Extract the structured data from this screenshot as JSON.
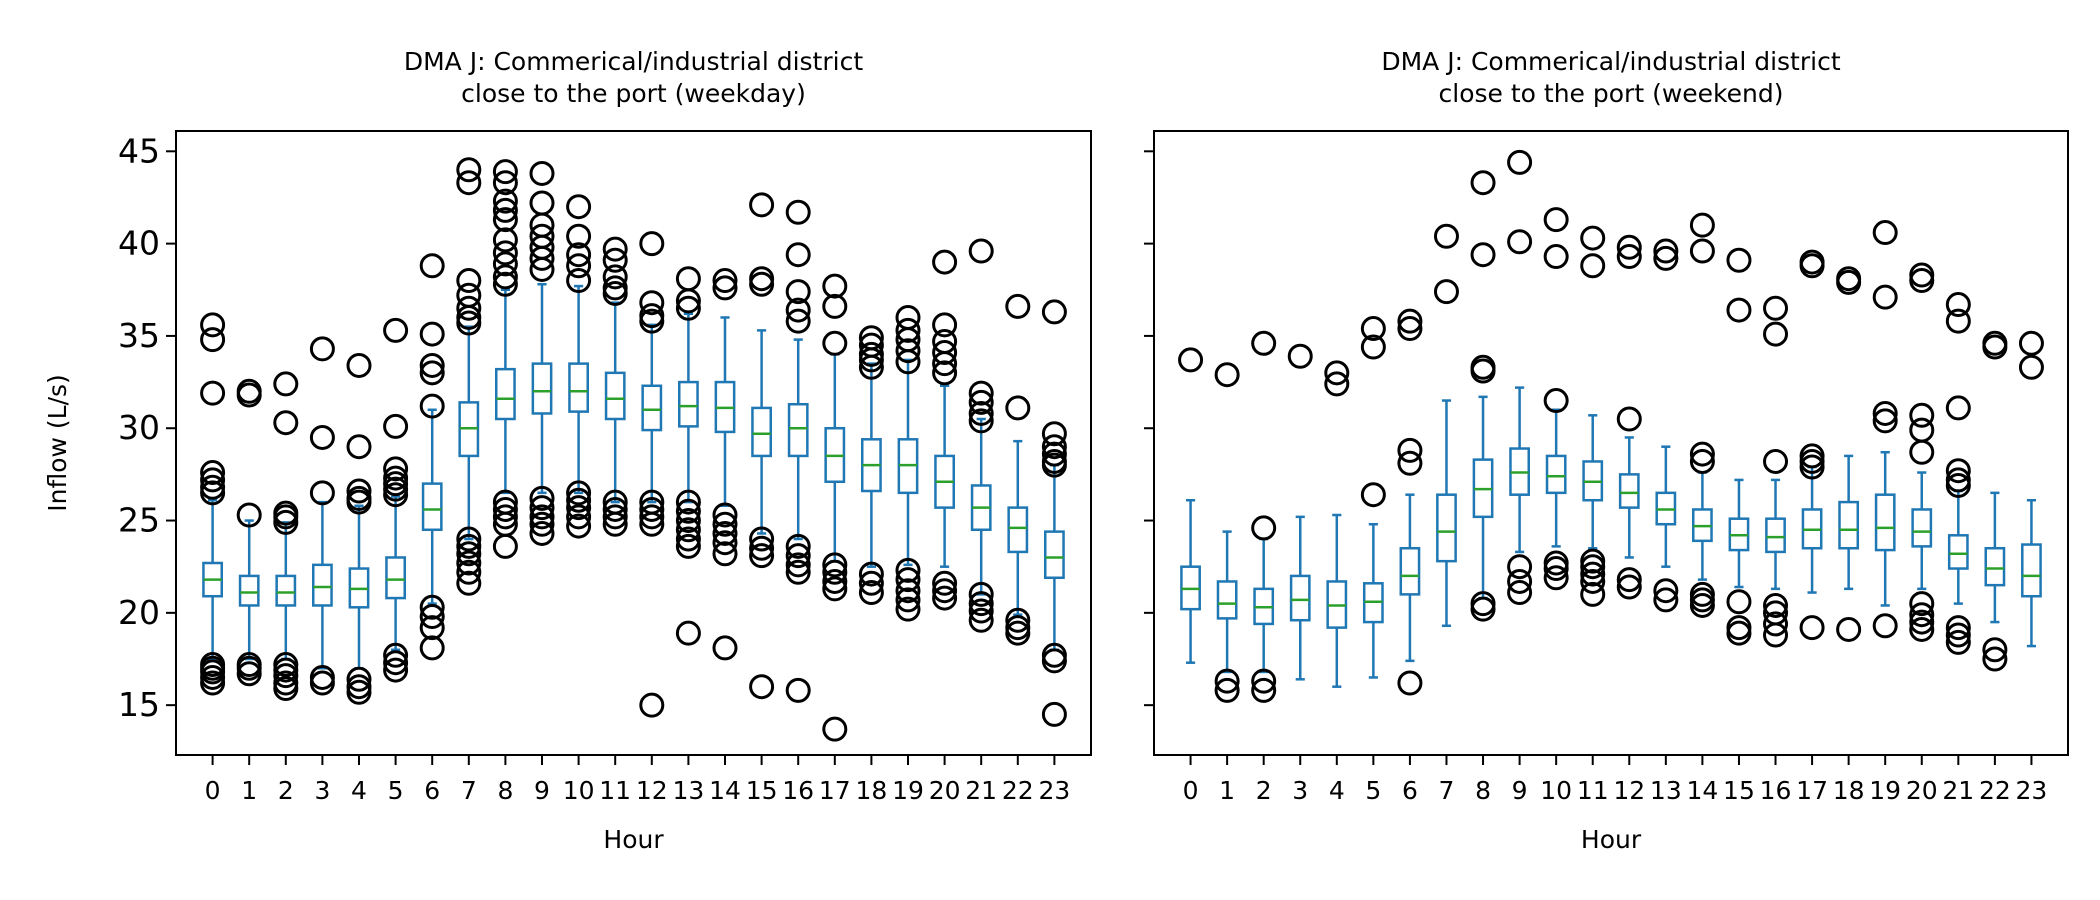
{
  "chart_data": [
    {
      "type": "box",
      "title": "DMA J: Commerical/industrial district\nclose to the port (weekday)",
      "xlabel": "Hour",
      "ylabel": "Inflow (L/s)",
      "ylim": [
        12.3,
        46.1
      ],
      "yticks": [
        15,
        20,
        25,
        30,
        35,
        40,
        45
      ],
      "categories": [
        "0",
        "1",
        "2",
        "3",
        "4",
        "5",
        "6",
        "7",
        "8",
        "9",
        "10",
        "11",
        "12",
        "13",
        "14",
        "15",
        "16",
        "17",
        "18",
        "19",
        "20",
        "21",
        "22",
        "23"
      ],
      "grid": false,
      "colors": {
        "box": "#1f77b4",
        "median": "#2ca02c",
        "flier": "#000000"
      },
      "boxes": [
        {
          "whislo": 17.5,
          "q1": 20.9,
          "med": 21.8,
          "q3": 22.7,
          "whishi": 26.1,
          "fliers": [
            35.6,
            34.8,
            31.9,
            27.6,
            27.2,
            26.8,
            26.5,
            17.2,
            17.0,
            16.8,
            16.5,
            16.2
          ]
        },
        {
          "whislo": 17.5,
          "q1": 20.4,
          "med": 21.1,
          "q3": 22.0,
          "whishi": 25.0,
          "fliers": [
            32.0,
            31.8,
            25.3,
            17.2,
            17.0,
            16.7
          ]
        },
        {
          "whislo": 17.5,
          "q1": 20.4,
          "med": 21.1,
          "q3": 22.0,
          "whishi": 24.9,
          "fliers": [
            32.4,
            30.3,
            25.4,
            25.2,
            24.9,
            17.2,
            16.9,
            16.6,
            16.2,
            15.9
          ]
        },
        {
          "whislo": 17.0,
          "q1": 20.4,
          "med": 21.4,
          "q3": 22.6,
          "whishi": 26.0,
          "fliers": [
            34.3,
            29.5,
            26.5,
            16.5,
            16.2
          ]
        },
        {
          "whislo": 17.0,
          "q1": 20.3,
          "med": 21.3,
          "q3": 22.4,
          "whishi": 25.8,
          "fliers": [
            33.4,
            29.0,
            26.6,
            26.2,
            26.0,
            16.4,
            16.0,
            15.7
          ]
        },
        {
          "whislo": 18.0,
          "q1": 20.8,
          "med": 21.8,
          "q3": 23.0,
          "whishi": 26.3,
          "fliers": [
            35.3,
            30.1,
            27.8,
            27.3,
            27.0,
            26.7,
            26.4,
            17.7,
            17.3,
            16.9
          ]
        },
        {
          "whislo": 20.5,
          "q1": 24.5,
          "med": 25.6,
          "q3": 27.0,
          "whishi": 31.0,
          "fliers": [
            38.8,
            35.1,
            33.4,
            33.0,
            31.2,
            20.3,
            19.8,
            19.2,
            18.1
          ]
        },
        {
          "whislo": 24.0,
          "q1": 28.5,
          "med": 30.0,
          "q3": 31.4,
          "whishi": 35.5,
          "fliers": [
            44.0,
            43.3,
            38.0,
            37.2,
            36.5,
            36.0,
            35.7,
            24.0,
            23.6,
            23.2,
            22.7,
            22.2,
            21.6
          ]
        },
        {
          "whislo": 26.5,
          "q1": 30.5,
          "med": 31.6,
          "q3": 33.2,
          "whishi": 37.5,
          "fliers": [
            43.9,
            43.3,
            42.3,
            41.8,
            41.3,
            40.2,
            39.5,
            38.9,
            38.2,
            37.8,
            26.0,
            25.6,
            25.2,
            24.8,
            23.6
          ]
        },
        {
          "whislo": 26.5,
          "q1": 30.8,
          "med": 32.0,
          "q3": 33.5,
          "whishi": 37.8,
          "fliers": [
            43.8,
            42.2,
            41.0,
            40.4,
            39.8,
            39.2,
            38.6,
            26.2,
            25.7,
            25.2,
            24.8,
            24.3
          ]
        },
        {
          "whislo": 26.5,
          "q1": 30.9,
          "med": 32.0,
          "q3": 33.5,
          "whishi": 37.7,
          "fliers": [
            42.0,
            40.4,
            39.4,
            38.8,
            38.0,
            26.5,
            26.1,
            25.7,
            25.2,
            24.7
          ]
        },
        {
          "whislo": 26.0,
          "q1": 30.5,
          "med": 31.6,
          "q3": 33.0,
          "whishi": 36.8,
          "fliers": [
            39.7,
            39.1,
            38.2,
            37.6,
            37.3,
            26.0,
            25.6,
            25.2,
            24.8
          ]
        },
        {
          "whislo": 26.0,
          "q1": 29.9,
          "med": 31.0,
          "q3": 32.3,
          "whishi": 35.6,
          "fliers": [
            40.0,
            36.8,
            36.1,
            35.8,
            26.0,
            25.6,
            25.2,
            24.8,
            15.0
          ]
        },
        {
          "whislo": 26.0,
          "q1": 30.1,
          "med": 31.2,
          "q3": 32.5,
          "whishi": 36.2,
          "fliers": [
            38.1,
            36.9,
            36.5,
            26.0,
            25.5,
            25.0,
            24.5,
            24.0,
            23.6,
            18.9
          ]
        },
        {
          "whislo": 25.8,
          "q1": 29.8,
          "med": 31.1,
          "q3": 32.5,
          "whishi": 36.0,
          "fliers": [
            38.0,
            37.6,
            25.3,
            24.8,
            24.3,
            23.8,
            23.2,
            18.1
          ]
        },
        {
          "whislo": 24.3,
          "q1": 28.5,
          "med": 29.7,
          "q3": 31.1,
          "whishi": 35.3,
          "fliers": [
            42.1,
            38.1,
            37.8,
            24.0,
            23.5,
            23.1,
            16.0
          ]
        },
        {
          "whislo": 24.0,
          "q1": 28.5,
          "med": 30.0,
          "q3": 31.3,
          "whishi": 34.8,
          "fliers": [
            41.7,
            39.4,
            37.4,
            36.4,
            35.8,
            23.6,
            23.1,
            22.6,
            22.2,
            15.8
          ]
        },
        {
          "whislo": 22.8,
          "q1": 27.1,
          "med": 28.5,
          "q3": 30.0,
          "whishi": 34.0,
          "fliers": [
            37.7,
            36.6,
            34.6,
            22.6,
            22.2,
            21.7,
            21.3,
            13.7
          ]
        },
        {
          "whislo": 22.5,
          "q1": 26.6,
          "med": 28.0,
          "q3": 29.4,
          "whishi": 33.5,
          "fliers": [
            34.9,
            34.5,
            34.0,
            33.7,
            33.3,
            22.1,
            21.6,
            21.1
          ]
        },
        {
          "whislo": 22.6,
          "q1": 26.5,
          "med": 28.0,
          "q3": 29.4,
          "whishi": 33.7,
          "fliers": [
            36.0,
            35.3,
            34.8,
            34.2,
            33.6,
            22.3,
            21.8,
            21.2,
            20.7,
            20.2
          ]
        },
        {
          "whislo": 22.5,
          "q1": 25.7,
          "med": 27.1,
          "q3": 28.5,
          "whishi": 32.3,
          "fliers": [
            39.0,
            35.6,
            34.7,
            34.1,
            33.5,
            33.0,
            21.6,
            21.2,
            20.8
          ]
        },
        {
          "whislo": 21.0,
          "q1": 24.5,
          "med": 25.7,
          "q3": 26.9,
          "whishi": 30.5,
          "fliers": [
            39.6,
            31.9,
            31.4,
            30.8,
            30.4,
            21.0,
            20.5,
            20.1,
            19.6
          ]
        },
        {
          "whislo": 19.9,
          "q1": 23.3,
          "med": 24.6,
          "q3": 25.7,
          "whishi": 29.3,
          "fliers": [
            36.6,
            31.1,
            19.6,
            19.2,
            18.9
          ]
        },
        {
          "whislo": 18.0,
          "q1": 21.9,
          "med": 23.0,
          "q3": 24.4,
          "whishi": 28.0,
          "fliers": [
            36.3,
            29.7,
            29.0,
            28.6,
            28.2,
            28.0,
            17.7,
            17.4,
            14.5
          ]
        }
      ]
    },
    {
      "type": "box",
      "title": "DMA J: Commerical/industrial district\nclose to the port (weekend)",
      "xlabel": "Hour",
      "ylabel": "",
      "ylim": [
        12.3,
        46.1
      ],
      "yticks": [
        15,
        20,
        25,
        30,
        35,
        40,
        45
      ],
      "categories": [
        "0",
        "1",
        "2",
        "3",
        "4",
        "5",
        "6",
        "7",
        "8",
        "9",
        "10",
        "11",
        "12",
        "13",
        "14",
        "15",
        "16",
        "17",
        "18",
        "19",
        "20",
        "21",
        "22",
        "23"
      ],
      "grid": false,
      "colors": {
        "box": "#1f77b4",
        "median": "#2ca02c",
        "flier": "#000000"
      },
      "boxes": [
        {
          "whislo": 17.3,
          "q1": 20.2,
          "med": 21.3,
          "q3": 22.5,
          "whishi": 26.1,
          "fliers": [
            33.7
          ]
        },
        {
          "whislo": 16.8,
          "q1": 19.7,
          "med": 20.5,
          "q3": 21.7,
          "whishi": 24.4,
          "fliers": [
            32.9,
            16.3,
            15.8
          ]
        },
        {
          "whislo": 16.8,
          "q1": 19.4,
          "med": 20.3,
          "q3": 21.3,
          "whishi": 24.0,
          "fliers": [
            34.6,
            24.6,
            16.3,
            15.8
          ]
        },
        {
          "whislo": 16.4,
          "q1": 19.6,
          "med": 20.7,
          "q3": 22.0,
          "whishi": 25.2,
          "fliers": [
            33.9
          ]
        },
        {
          "whislo": 16.0,
          "q1": 19.2,
          "med": 20.4,
          "q3": 21.7,
          "whishi": 25.3,
          "fliers": [
            33.0,
            32.4
          ]
        },
        {
          "whislo": 16.5,
          "q1": 19.5,
          "med": 20.6,
          "q3": 21.6,
          "whishi": 24.8,
          "fliers": [
            35.4,
            34.4,
            26.4
          ]
        },
        {
          "whislo": 17.4,
          "q1": 21.0,
          "med": 22.0,
          "q3": 23.5,
          "whishi": 26.4,
          "fliers": [
            35.8,
            35.4,
            28.8,
            28.1,
            16.2
          ]
        },
        {
          "whislo": 19.3,
          "q1": 22.8,
          "med": 24.4,
          "q3": 26.4,
          "whishi": 31.5,
          "fliers": [
            40.4,
            37.4
          ]
        },
        {
          "whislo": 20.8,
          "q1": 25.2,
          "med": 26.7,
          "q3": 28.3,
          "whishi": 31.7,
          "fliers": [
            43.3,
            39.4,
            33.3,
            33.1,
            20.5,
            20.2
          ]
        },
        {
          "whislo": 23.3,
          "q1": 26.4,
          "med": 27.6,
          "q3": 28.9,
          "whishi": 32.2,
          "fliers": [
            44.4,
            40.1,
            22.5,
            21.7,
            21.1
          ]
        },
        {
          "whislo": 23.6,
          "q1": 26.5,
          "med": 27.4,
          "q3": 28.5,
          "whishi": 31.0,
          "fliers": [
            41.3,
            39.3,
            31.5,
            22.7,
            22.4,
            21.9
          ]
        },
        {
          "whislo": 23.5,
          "q1": 26.1,
          "med": 27.1,
          "q3": 28.2,
          "whishi": 30.7,
          "fliers": [
            40.3,
            38.8,
            22.8,
            22.5,
            22.1,
            21.7,
            21.0
          ]
        },
        {
          "whislo": 23.0,
          "q1": 25.7,
          "med": 26.5,
          "q3": 27.5,
          "whishi": 29.5,
          "fliers": [
            39.8,
            39.3,
            30.5,
            21.8,
            21.4
          ]
        },
        {
          "whislo": 22.5,
          "q1": 24.8,
          "med": 25.6,
          "q3": 26.5,
          "whishi": 29.0,
          "fliers": [
            39.6,
            39.2,
            21.2,
            20.7
          ]
        },
        {
          "whislo": 21.8,
          "q1": 23.9,
          "med": 24.7,
          "q3": 25.6,
          "whishi": 27.6,
          "fliers": [
            41.0,
            39.6,
            28.6,
            28.2,
            21.0,
            20.7,
            20.4
          ]
        },
        {
          "whislo": 21.4,
          "q1": 23.4,
          "med": 24.2,
          "q3": 25.1,
          "whishi": 27.2,
          "fliers": [
            39.1,
            36.4,
            20.6,
            19.2,
            18.9
          ]
        },
        {
          "whislo": 21.3,
          "q1": 23.3,
          "med": 24.1,
          "q3": 25.1,
          "whishi": 27.2,
          "fliers": [
            36.5,
            35.1,
            28.2,
            20.4,
            20.0,
            19.4,
            18.8
          ]
        },
        {
          "whislo": 21.1,
          "q1": 23.5,
          "med": 24.5,
          "q3": 25.6,
          "whishi": 27.9,
          "fliers": [
            39.0,
            38.8,
            28.5,
            28.2,
            27.9,
            19.2
          ]
        },
        {
          "whislo": 21.3,
          "q1": 23.5,
          "med": 24.5,
          "q3": 26.0,
          "whishi": 28.5,
          "fliers": [
            38.1,
            37.9,
            19.1
          ]
        },
        {
          "whislo": 20.4,
          "q1": 23.4,
          "med": 24.6,
          "q3": 26.4,
          "whishi": 28.7,
          "fliers": [
            40.6,
            37.1,
            30.8,
            30.4,
            19.3
          ]
        },
        {
          "whislo": 21.3,
          "q1": 23.6,
          "med": 24.4,
          "q3": 25.6,
          "whishi": 27.6,
          "fliers": [
            38.3,
            38.0,
            30.7,
            29.9,
            28.7,
            20.5,
            19.9,
            19.5,
            19.1
          ]
        },
        {
          "whislo": 20.5,
          "q1": 22.4,
          "med": 23.2,
          "q3": 24.2,
          "whishi": 26.6,
          "fliers": [
            36.7,
            35.8,
            31.1,
            27.7,
            27.2,
            26.9,
            19.2,
            18.8,
            18.4
          ]
        },
        {
          "whislo": 19.5,
          "q1": 21.5,
          "med": 22.4,
          "q3": 23.5,
          "whishi": 26.5,
          "fliers": [
            34.6,
            34.4,
            18.0,
            17.5
          ]
        },
        {
          "whislo": 18.2,
          "q1": 20.9,
          "med": 22.0,
          "q3": 23.7,
          "whishi": 26.1,
          "fliers": [
            34.6,
            33.3
          ]
        }
      ]
    }
  ]
}
